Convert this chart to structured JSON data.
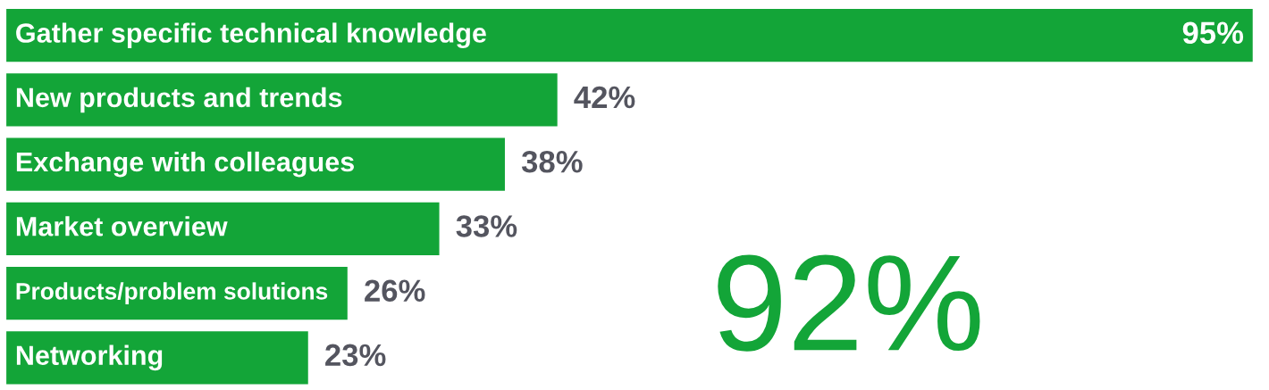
{
  "chart_data": {
    "type": "bar",
    "orientation": "horizontal",
    "categories": [
      "Gather specific technical knowledge",
      "New products and trends",
      "Exchange with colleagues",
      "Market overview",
      "Products/problem solutions",
      "Networking"
    ],
    "values": [
      95,
      42,
      38,
      33,
      26,
      23
    ],
    "value_labels": [
      "95%",
      "42%",
      "38%",
      "33%",
      "26%",
      "23%"
    ],
    "color": "#13a538",
    "annotations": [
      "92%"
    ],
    "legend": false
  }
}
